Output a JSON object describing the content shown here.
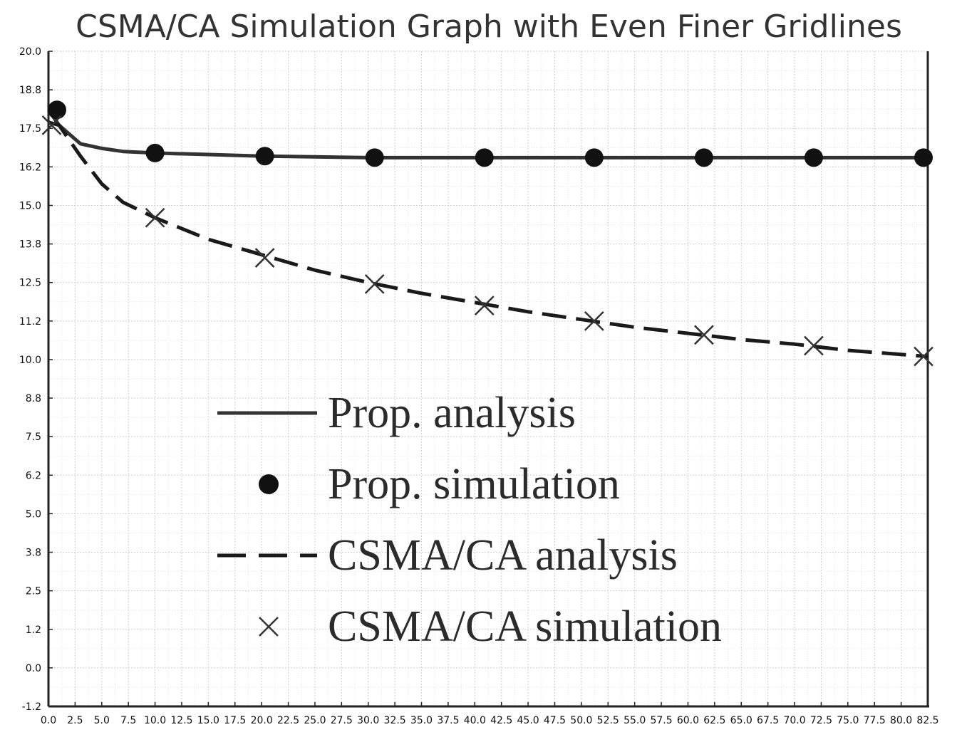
{
  "chart_data": {
    "type": "line",
    "title": "CSMA/CA Simulation Graph with Even Finer Gridlines",
    "xlabel": "",
    "ylabel": "",
    "xlim": [
      0,
      82.5
    ],
    "ylim": [
      -1.25,
      20
    ],
    "grid": true,
    "x_ticks": [
      "0.0",
      "2.5",
      "5.0",
      "7.5",
      "10.0",
      "12.5",
      "15.0",
      "17.5",
      "20.0",
      "22.5",
      "25.0",
      "27.5",
      "30.0",
      "32.5",
      "35.0",
      "37.5",
      "40.0",
      "42.5",
      "45.0",
      "47.5",
      "50.0",
      "52.5",
      "55.0",
      "57.5",
      "60.0",
      "62.5",
      "65.0",
      "67.5",
      "70.0",
      "72.5",
      "75.0",
      "77.5",
      "80.0",
      "82.5"
    ],
    "y_ticks": [
      "-1.2",
      "0.0",
      "1.2",
      "2.5",
      "3.8",
      "5.0",
      "6.2",
      "7.5",
      "8.8",
      "10.0",
      "11.2",
      "12.5",
      "13.8",
      "15.0",
      "16.2",
      "17.5",
      "18.8",
      "20.0"
    ],
    "legend_position": "center-left",
    "series": [
      {
        "name": "Prop. analysis",
        "style": "solid",
        "color": "#333333",
        "x": [
          0,
          1,
          2,
          3,
          5,
          7,
          10,
          15,
          20,
          30,
          40,
          50,
          60,
          70,
          82.5
        ],
        "y": [
          18.1,
          17.6,
          17.3,
          17.0,
          16.85,
          16.75,
          16.7,
          16.65,
          16.6,
          16.55,
          16.55,
          16.55,
          16.55,
          16.55,
          16.55
        ]
      },
      {
        "name": "Prop. simulation",
        "marker": "circle",
        "color": "#111111",
        "x": [
          0.8,
          10,
          20.3,
          30.6,
          40.9,
          51.2,
          61.5,
          71.8,
          82.1
        ],
        "y": [
          18.1,
          16.7,
          16.6,
          16.55,
          16.55,
          16.55,
          16.55,
          16.55,
          16.55
        ]
      },
      {
        "name": "CSMA/CA analysis",
        "style": "dashed",
        "color": "#1a1a1a",
        "x": [
          0,
          1,
          2,
          3,
          5,
          7,
          10,
          15,
          20,
          25,
          30,
          35,
          40,
          45,
          50,
          55,
          60,
          65,
          70,
          75,
          82.5
        ],
        "y": [
          17.7,
          17.6,
          17.1,
          16.6,
          15.7,
          15.1,
          14.6,
          13.9,
          13.4,
          12.9,
          12.5,
          12.15,
          11.85,
          11.55,
          11.3,
          11.05,
          10.85,
          10.65,
          10.5,
          10.3,
          10.1
        ]
      },
      {
        "name": "CSMA/CA simulation",
        "marker": "x",
        "color": "#333333",
        "x": [
          0.3,
          10,
          20.3,
          30.6,
          40.9,
          51.2,
          61.5,
          71.8,
          82.1
        ],
        "y": [
          17.6,
          14.6,
          13.3,
          12.45,
          11.75,
          11.25,
          10.8,
          10.45,
          10.1
        ]
      }
    ]
  }
}
